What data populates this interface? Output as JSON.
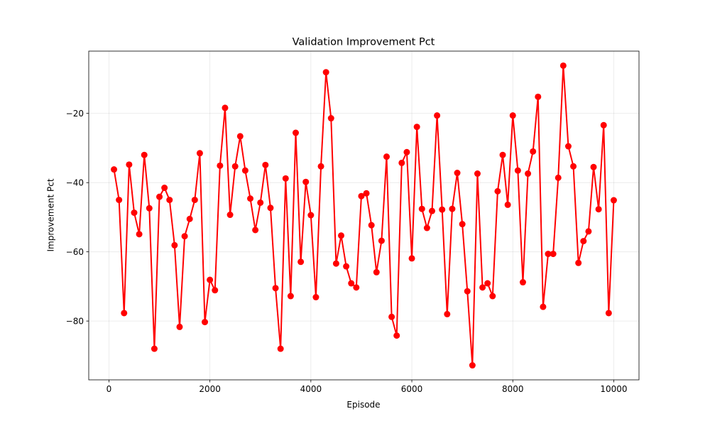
{
  "chart_data": {
    "type": "line",
    "title": "Validation Improvement Pct",
    "xlabel": "Episode",
    "ylabel": "Improvement Pct",
    "xlim": [
      -400,
      10500
    ],
    "ylim": [
      -97,
      -2
    ],
    "xticks": [
      0,
      2000,
      4000,
      6000,
      8000,
      10000
    ],
    "xtick_labels": [
      "0",
      "2000",
      "4000",
      "6000",
      "8000",
      "10000"
    ],
    "yticks": [
      -80,
      -60,
      -40,
      -20
    ],
    "ytick_labels": [
      "−80",
      "−60",
      "−40",
      "−20"
    ],
    "grid": true,
    "legend": "none",
    "series": [
      {
        "color": "#ff0000",
        "marker": "circle",
        "x": [
          100,
          200,
          300,
          400,
          500,
          600,
          700,
          800,
          900,
          1000,
          1100,
          1200,
          1300,
          1400,
          1500,
          1600,
          1700,
          1800,
          1900,
          2000,
          2100,
          2200,
          2300,
          2400,
          2500,
          2600,
          2700,
          2800,
          2900,
          3000,
          3100,
          3200,
          3300,
          3400,
          3500,
          3600,
          3700,
          3800,
          3900,
          4000,
          4100,
          4200,
          4300,
          4400,
          4500,
          4600,
          4700,
          4800,
          4900,
          5000,
          5100,
          5200,
          5300,
          5400,
          5500,
          5600,
          5700,
          5800,
          5900,
          6000,
          6100,
          6200,
          6300,
          6400,
          6500,
          6600,
          6700,
          6800,
          6900,
          7000,
          7100,
          7200,
          7300,
          7400,
          7500,
          7600,
          7700,
          7800,
          7900,
          8000,
          8100,
          8200,
          8300,
          8400,
          8500,
          8600,
          8700,
          8800,
          8900,
          9000,
          9100,
          9200,
          9300,
          9400,
          9500,
          9600,
          9700,
          9800,
          9900,
          10000
        ],
        "y": [
          -36.2,
          -45.0,
          -77.7,
          -34.8,
          -48.7,
          -54.9,
          -32.0,
          -47.4,
          -88.0,
          -44.1,
          -41.5,
          -45.0,
          -58.1,
          -81.7,
          -55.5,
          -50.5,
          -45.0,
          -31.5,
          -80.3,
          -68.1,
          -71.1,
          -35.1,
          -18.4,
          -49.3,
          -35.3,
          -26.6,
          -36.5,
          -44.6,
          -53.7,
          -45.8,
          -34.9,
          -47.3,
          -70.5,
          -88.0,
          -38.8,
          -72.8,
          -25.6,
          -62.9,
          -39.8,
          -49.4,
          -73.1,
          -35.3,
          -8.1,
          -21.4,
          -63.4,
          -55.3,
          -64.2,
          -69.1,
          -70.3,
          -43.9,
          -43.1,
          -52.3,
          -65.9,
          -56.8,
          -32.5,
          -78.8,
          -84.2,
          -34.3,
          -31.2,
          -61.9,
          -23.9,
          -47.6,
          -53.1,
          -48.2,
          -20.6,
          -47.8,
          -78.0,
          -47.6,
          -37.2,
          -52.0,
          -71.4,
          -92.8,
          -37.4,
          -70.3,
          -69.1,
          -72.8,
          -42.5,
          -32.0,
          -46.4,
          -20.6,
          -36.5,
          -68.8,
          -37.4,
          -31.0,
          -15.2,
          -75.9,
          -60.6,
          -60.6,
          -38.6,
          -6.2,
          -29.5,
          -35.3,
          -63.2,
          -56.9,
          -54.1,
          -35.5,
          -47.7,
          -23.4,
          -77.7,
          -45.1
        ]
      }
    ]
  }
}
